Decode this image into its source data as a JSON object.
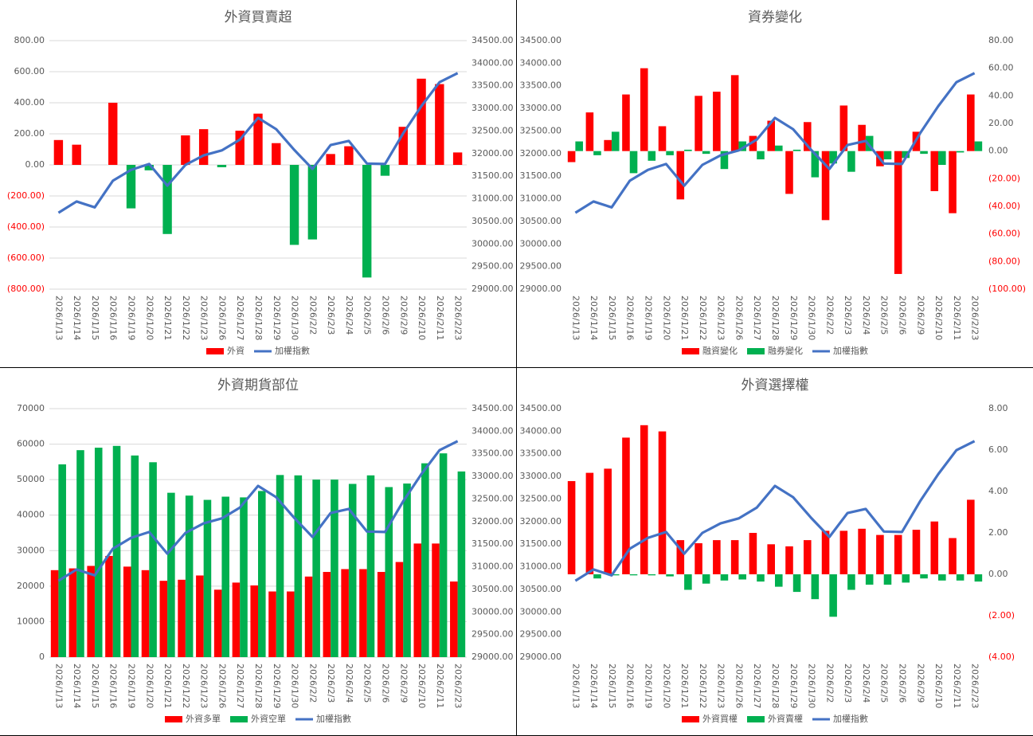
{
  "chart_data": [
    {
      "type": "combo",
      "title": "外資買賣超",
      "categories": [
        "2026/1/13",
        "2026/1/14",
        "2026/1/15",
        "2026/1/16",
        "2026/1/19",
        "2026/1/20",
        "2026/1/21",
        "2026/1/22",
        "2026/1/23",
        "2026/1/26",
        "2026/1/27",
        "2026/1/28",
        "2026/1/29",
        "2026/1/30",
        "2026/2/2",
        "2026/2/3",
        "2026/2/4",
        "2026/2/5",
        "2026/2/6",
        "2026/2/9",
        "2026/2/10",
        "2026/2/11",
        "2026/2/23"
      ],
      "series": [
        {
          "name": "外資",
          "type": "bar",
          "color": "#ff0000",
          "negative_color": "#00b050",
          "values": [
            160,
            130,
            0,
            400,
            -280,
            -35,
            -445,
            190,
            230,
            -15,
            220,
            330,
            140,
            -515,
            -480,
            70,
            120,
            -725,
            -70,
            245,
            555,
            520,
            80
          ]
        },
        {
          "name": "加權指數",
          "type": "line",
          "axis": "y2",
          "color": "#4472c4",
          "values": [
            30690,
            30940,
            30810,
            31400,
            31640,
            31770,
            31290,
            31750,
            31960,
            32070,
            32310,
            32790,
            32540,
            32080,
            31660,
            32190,
            32280,
            31780,
            31770,
            32450,
            33050,
            33580,
            33780
          ]
        }
      ],
      "ylim": [
        -800,
        800
      ],
      "yticks": [
        {
          "value": 800,
          "label": "800.00"
        },
        {
          "value": 600,
          "label": "600.00"
        },
        {
          "value": 400,
          "label": "400.00"
        },
        {
          "value": 200,
          "label": "200.00"
        },
        {
          "value": 0,
          "label": "0.00"
        },
        {
          "value": -200,
          "label": "(200.00)"
        },
        {
          "value": -400,
          "label": "(400.00)"
        },
        {
          "value": -600,
          "label": "(600.00)"
        },
        {
          "value": -800,
          "label": "(800.00)"
        }
      ],
      "y2lim": [
        29000,
        34500
      ],
      "y2ticks": [
        {
          "value": 34500,
          "label": "34500.00"
        },
        {
          "value": 34000,
          "label": "34000.00"
        },
        {
          "value": 33500,
          "label": "33500.00"
        },
        {
          "value": 33000,
          "label": "33000.00"
        },
        {
          "value": 32500,
          "label": "32500.00"
        },
        {
          "value": 32000,
          "label": "32000.00"
        },
        {
          "value": 31500,
          "label": "31500.00"
        },
        {
          "value": 31000,
          "label": "31000.00"
        },
        {
          "value": 30500,
          "label": "30500.00"
        },
        {
          "value": 30000,
          "label": "30000.00"
        },
        {
          "value": 29500,
          "label": "29500.00"
        },
        {
          "value": 29000,
          "label": "29000.00"
        }
      ],
      "grid": true,
      "negative_tick_color": "#ff0000",
      "legend": "bottom"
    },
    {
      "type": "combo",
      "title": "資券變化",
      "categories": [
        "2026/1/13",
        "2026/1/14",
        "2026/1/15",
        "2026/1/16",
        "2026/1/19",
        "2026/1/20",
        "2026/1/21",
        "2026/1/22",
        "2026/1/23",
        "2026/1/26",
        "2026/1/27",
        "2026/1/28",
        "2026/1/29",
        "2026/1/30",
        "2026/2/2",
        "2026/2/3",
        "2026/2/4",
        "2026/2/5",
        "2026/2/6",
        "2026/2/9",
        "2026/2/10",
        "2026/2/11",
        "2026/2/23"
      ],
      "series": [
        {
          "name": "融資變化",
          "type": "bar",
          "axis": "y2",
          "color": "#ff0000",
          "values": [
            -8,
            28,
            8,
            41,
            60,
            18,
            -35,
            40,
            43,
            55,
            11,
            22,
            -31,
            21,
            -50,
            33,
            19,
            -11,
            -89,
            14,
            -29,
            -45,
            41
          ]
        },
        {
          "name": "融券變化",
          "type": "bar",
          "axis": "y2",
          "color": "#00b050",
          "values": [
            7,
            -3,
            14,
            -16,
            -7,
            -3,
            1,
            -2,
            -13,
            7,
            -6,
            4,
            1,
            -19,
            -9,
            -15,
            11,
            -6,
            -5,
            -2,
            -10,
            -1,
            7
          ]
        },
        {
          "name": "加權指數",
          "type": "line",
          "color": "#4472c4",
          "values": [
            30690,
            30940,
            30810,
            31400,
            31640,
            31770,
            31290,
            31750,
            31960,
            32070,
            32310,
            32790,
            32540,
            32080,
            31660,
            32190,
            32280,
            31780,
            31770,
            32450,
            33050,
            33580,
            33780
          ]
        }
      ],
      "ylim": [
        29000,
        34500
      ],
      "yticks": [
        {
          "value": 34500,
          "label": "34500.00"
        },
        {
          "value": 34000,
          "label": "34000.00"
        },
        {
          "value": 33500,
          "label": "33500.00"
        },
        {
          "value": 33000,
          "label": "33000.00"
        },
        {
          "value": 32500,
          "label": "32500.00"
        },
        {
          "value": 32000,
          "label": "32000.00"
        },
        {
          "value": 31500,
          "label": "31500.00"
        },
        {
          "value": 31000,
          "label": "31000.00"
        },
        {
          "value": 30500,
          "label": "30500.00"
        },
        {
          "value": 30000,
          "label": "30000.00"
        },
        {
          "value": 29500,
          "label": "29500.00"
        },
        {
          "value": 29000,
          "label": "29000.00"
        }
      ],
      "y2lim": [
        -100,
        80
      ],
      "y2ticks": [
        {
          "value": 80,
          "label": "80.00"
        },
        {
          "value": 60,
          "label": "60.00"
        },
        {
          "value": 40,
          "label": "40.00"
        },
        {
          "value": 20,
          "label": "20.00"
        },
        {
          "value": 0,
          "label": "0.00"
        },
        {
          "value": -20,
          "label": "(20.00)"
        },
        {
          "value": -40,
          "label": "(40.00)"
        },
        {
          "value": -60,
          "label": "(60.00)"
        },
        {
          "value": -80,
          "label": "(80.00)"
        },
        {
          "value": -100,
          "label": "(100.00)"
        }
      ],
      "grid": false,
      "negative_tick_color": "#ff0000",
      "legend": "bottom"
    },
    {
      "type": "combo",
      "title": "外資期貨部位",
      "categories": [
        "2026/1/13",
        "2026/1/14",
        "2026/1/15",
        "2026/1/16",
        "2026/1/19",
        "2026/1/20",
        "2026/1/21",
        "2026/1/22",
        "2026/1/23",
        "2026/1/26",
        "2026/1/27",
        "2026/1/28",
        "2026/1/29",
        "2026/1/30",
        "2026/2/2",
        "2026/2/3",
        "2026/2/4",
        "2026/2/5",
        "2026/2/6",
        "2026/2/9",
        "2026/2/10",
        "2026/2/11",
        "2026/2/23"
      ],
      "series": [
        {
          "name": "外資多單",
          "type": "bar",
          "color": "#ff0000",
          "values": [
            24500,
            25000,
            25700,
            28500,
            25500,
            24500,
            21500,
            21800,
            23000,
            19000,
            21000,
            20200,
            18500,
            18500,
            22700,
            24000,
            24800,
            24800,
            24000,
            26800,
            32000,
            32000,
            21300
          ]
        },
        {
          "name": "外資空單",
          "type": "bar",
          "color": "#00b050",
          "values": [
            54300,
            58300,
            59000,
            59500,
            56800,
            54900,
            46300,
            45500,
            44300,
            45200,
            45000,
            46800,
            51300,
            51200,
            50000,
            50000,
            48800,
            51200,
            47900,
            48900,
            54600,
            57400,
            52300
          ]
        },
        {
          "name": "加權指數",
          "type": "line",
          "axis": "y2",
          "color": "#4472c4",
          "values": [
            30690,
            30940,
            30810,
            31400,
            31640,
            31770,
            31290,
            31750,
            31960,
            32070,
            32310,
            32790,
            32540,
            32080,
            31660,
            32190,
            32280,
            31780,
            31770,
            32450,
            33050,
            33580,
            33780
          ]
        }
      ],
      "ylim": [
        0,
        70000
      ],
      "yticks": [
        70000,
        60000,
        50000,
        40000,
        30000,
        20000,
        10000,
        0
      ],
      "y2lim": [
        29000,
        34500
      ],
      "y2ticks": [
        {
          "value": 34500,
          "label": "34500.00"
        },
        {
          "value": 34000,
          "label": "34000.00"
        },
        {
          "value": 33500,
          "label": "33500.00"
        },
        {
          "value": 33000,
          "label": "33000.00"
        },
        {
          "value": 32500,
          "label": "32500.00"
        },
        {
          "value": 32000,
          "label": "32000.00"
        },
        {
          "value": 31500,
          "label": "31500.00"
        },
        {
          "value": 31000,
          "label": "31000.00"
        },
        {
          "value": 30500,
          "label": "30500.00"
        },
        {
          "value": 30000,
          "label": "30000.00"
        },
        {
          "value": 29500,
          "label": "29500.00"
        },
        {
          "value": 29000,
          "label": "29000.00"
        }
      ],
      "grid": true,
      "legend": "bottom"
    },
    {
      "type": "combo",
      "title": "外資選擇權",
      "categories": [
        "2026/1/13",
        "2026/1/14",
        "2026/1/15",
        "2026/1/16",
        "2026/1/19",
        "2026/1/20",
        "2026/1/21",
        "2026/1/22",
        "2026/1/23",
        "2026/1/26",
        "2026/1/27",
        "2026/1/28",
        "2026/1/29",
        "2026/1/30",
        "2026/2/2",
        "2026/2/3",
        "2026/2/4",
        "2026/2/5",
        "2026/2/6",
        "2026/2/9",
        "2026/2/10",
        "2026/2/11",
        "2026/2/23"
      ],
      "series": [
        {
          "name": "外資買權",
          "type": "bar",
          "axis": "y2",
          "color": "#ff0000",
          "values": [
            4.5,
            4.9,
            5.1,
            6.6,
            7.2,
            6.9,
            1.65,
            1.5,
            1.65,
            1.65,
            2.0,
            1.45,
            1.35,
            1.65,
            2.1,
            2.1,
            2.2,
            1.9,
            1.9,
            2.15,
            2.55,
            1.75,
            3.6
          ]
        },
        {
          "name": "外資賣權",
          "type": "bar",
          "axis": "y2",
          "color": "#00b050",
          "values": [
            0,
            -0.2,
            -0.05,
            -0.05,
            -0.05,
            -0.1,
            -0.75,
            -0.45,
            -0.3,
            -0.25,
            -0.35,
            -0.6,
            -0.85,
            -1.2,
            -2.05,
            -0.75,
            -0.5,
            -0.5,
            -0.4,
            -0.2,
            -0.3,
            -0.3,
            -0.35
          ]
        },
        {
          "name": "加權指數",
          "type": "line",
          "color": "#4472c4",
          "values": [
            30690,
            30940,
            30810,
            31400,
            31640,
            31770,
            31290,
            31750,
            31960,
            32070,
            32310,
            32790,
            32540,
            32080,
            31660,
            32190,
            32280,
            31780,
            31770,
            32450,
            33050,
            33580,
            33780
          ]
        }
      ],
      "ylim": [
        29000,
        34500
      ],
      "yticks": [
        {
          "value": 34500,
          "label": "34500.00"
        },
        {
          "value": 34000,
          "label": "34000.00"
        },
        {
          "value": 33500,
          "label": "33500.00"
        },
        {
          "value": 33000,
          "label": "33000.00"
        },
        {
          "value": 32500,
          "label": "32500.00"
        },
        {
          "value": 32000,
          "label": "32000.00"
        },
        {
          "value": 31500,
          "label": "31500.00"
        },
        {
          "value": 31000,
          "label": "31000.00"
        },
        {
          "value": 30500,
          "label": "30500.00"
        },
        {
          "value": 30000,
          "label": "30000.00"
        },
        {
          "value": 29500,
          "label": "29500.00"
        },
        {
          "value": 29000,
          "label": "29000.00"
        }
      ],
      "y2lim": [
        -4,
        8
      ],
      "y2ticks": [
        {
          "value": 8,
          "label": "8.00"
        },
        {
          "value": 6,
          "label": "6.00"
        },
        {
          "value": 4,
          "label": "4.00"
        },
        {
          "value": 2,
          "label": "2.00"
        },
        {
          "value": 0,
          "label": "0.00"
        },
        {
          "value": -2,
          "label": "(2.00)"
        },
        {
          "value": -4,
          "label": "(4.00)"
        }
      ],
      "grid": false,
      "negative_tick_color": "#ff0000",
      "legend": "bottom"
    }
  ]
}
